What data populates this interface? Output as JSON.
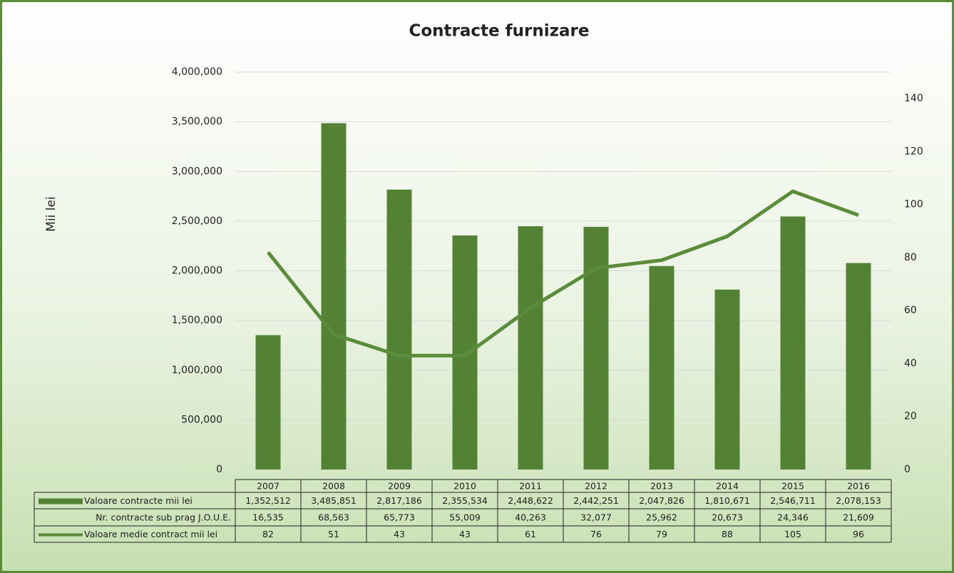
{
  "chart_data": {
    "type": "bar",
    "title": "Contracte furnizare",
    "ylabel": "Mii lei",
    "categories": [
      "2007",
      "2008",
      "2009",
      "2010",
      "2011",
      "2012",
      "2013",
      "2014",
      "2015",
      "2016"
    ],
    "series": [
      {
        "name": "Valoare contracte mii lei",
        "type": "bar",
        "color": "#548235",
        "values": [
          1352512,
          3485851,
          2817186,
          2355534,
          2448622,
          2442251,
          2047826,
          1810671,
          2546711,
          2078153
        ],
        "value_labels": [
          "1,352,512",
          "3,485,851",
          "2,817,186",
          "2,355,534",
          "2,448,622",
          "2,442,251",
          "2,047,826",
          "1,810,671",
          "2,546,711",
          "2,078,153"
        ]
      },
      {
        "name": "Nr. contracte sub prag J.O.U.E.",
        "type": "table",
        "values": [
          16535,
          68563,
          65773,
          55009,
          40263,
          32077,
          25962,
          20673,
          24346,
          21609
        ],
        "value_labels": [
          "16,535",
          "68,563",
          "65,773",
          "55,009",
          "40,263",
          "32,077",
          "25,962",
          "20,673",
          "24,346",
          "21,609"
        ]
      },
      {
        "name": "Valoare medie contract mii lei",
        "type": "line",
        "axis": "y2",
        "color": "#5b8c3a",
        "values": [
          82,
          51,
          43,
          43,
          61,
          76,
          79,
          88,
          105,
          96
        ]
      }
    ],
    "ylim": [
      0,
      4000000
    ],
    "yticks": [
      0,
      {
        "value": 500000,
        "label": "500,000"
      },
      {
        "value": 1000000,
        "label": "1,000,000"
      },
      {
        "value": 1500000,
        "label": "1,500,000"
      },
      {
        "value": 2000000,
        "label": "2,000,000"
      },
      {
        "value": 2500000,
        "label": "2,500,000"
      },
      {
        "value": 3000000,
        "label": "3,000,000"
      },
      {
        "value": 3500000,
        "label": "3,500,000"
      },
      {
        "value": 4000000,
        "label": "4,000,000"
      }
    ],
    "y2lim": [
      0,
      150
    ],
    "y2ticks": [
      0,
      20,
      40,
      60,
      80,
      100,
      120,
      140
    ],
    "grid": true
  }
}
